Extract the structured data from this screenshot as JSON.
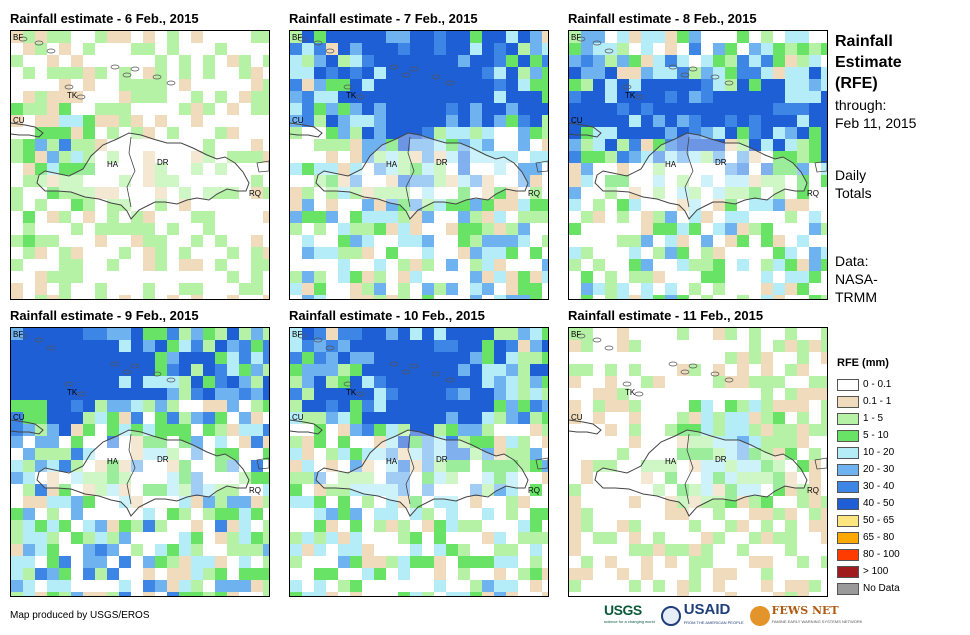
{
  "panels": [
    {
      "title": "Rainfall estimate - 6 Feb., 2015",
      "seed": 6,
      "intensity": 0.55,
      "wet_region": "west"
    },
    {
      "title": "Rainfall estimate - 7 Feb., 2015",
      "seed": 7,
      "intensity": 0.9,
      "wet_region": "north"
    },
    {
      "title": "Rainfall estimate - 8 Feb., 2015",
      "seed": 8,
      "intensity": 0.9,
      "wet_region": "band"
    },
    {
      "title": "Rainfall estimate - 9 Feb., 2015",
      "seed": 9,
      "intensity": 1.0,
      "wet_region": "northwest"
    },
    {
      "title": "Rainfall estimate - 10 Feb., 2015",
      "seed": 10,
      "intensity": 0.85,
      "wet_region": "north"
    },
    {
      "title": "Rainfall estimate - 11 Feb., 2015",
      "seed": 11,
      "intensity": 0.5,
      "wet_region": "east"
    }
  ],
  "map_labels": {
    "bf": "BF",
    "tk": "TK",
    "cu": "CU",
    "ha": "HA",
    "dr": "DR",
    "rq": "RQ"
  },
  "sidebar": {
    "title_line1": "Rainfall",
    "title_line2": "Estimate",
    "title_line3": "(RFE)",
    "through": "through:",
    "date": "Feb 11, 2015",
    "daily": "Daily",
    "totals": "Totals",
    "data_label": "Data:",
    "source_line1": "NASA-",
    "source_line2": "TRMM"
  },
  "legend": {
    "title": "RFE (mm)",
    "items": [
      {
        "label": "0 - 0.1",
        "color": "#ffffff"
      },
      {
        "label": "0.1 - 1",
        "color": "#f0dcbc"
      },
      {
        "label": "1 - 5",
        "color": "#b6f2a6"
      },
      {
        "label": "5 - 10",
        "color": "#68e366"
      },
      {
        "label": "10 - 20",
        "color": "#b4ecf8"
      },
      {
        "label": "20 - 30",
        "color": "#6fb2f0"
      },
      {
        "label": "30 - 40",
        "color": "#3e86e6"
      },
      {
        "label": "40 - 50",
        "color": "#1e5fd6"
      },
      {
        "label": "50 - 65",
        "color": "#ffe680"
      },
      {
        "label": "65 - 80",
        "color": "#ffa800"
      },
      {
        "label": "80 - 100",
        "color": "#ff3c00"
      },
      {
        "label": "> 100",
        "color": "#a01c1c"
      },
      {
        "label": "No Data",
        "color": "#9a9a9a"
      }
    ]
  },
  "footer": {
    "credit": "Map produced by USGS/EROS",
    "usgs": "USGS",
    "usgs_sub": "science for a changing world",
    "usaid": "USAID",
    "usaid_sub": "FROM THE AMERICAN PEOPLE",
    "fews": "FEWS NET",
    "fews_sub": "FAMINE EARLY WARNING SYSTEMS NETWORK"
  }
}
